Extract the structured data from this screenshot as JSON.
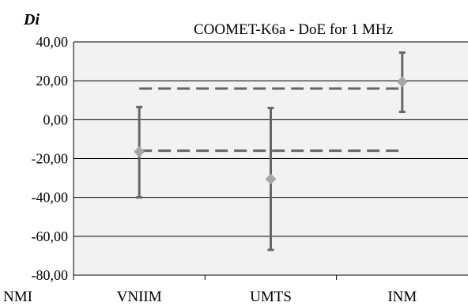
{
  "chart_data": {
    "type": "scatter",
    "title": "COOMET-K6a - DoE for 1 MHz",
    "ylabel": "Di",
    "xlabel": "NMI",
    "categories": [
      "VNIIM",
      "UMTS",
      "INM"
    ],
    "ylim": [
      -80,
      40
    ],
    "ytick_values": [
      40,
      20,
      0,
      -20,
      -40,
      -60,
      -80
    ],
    "ytick_labels": [
      "40,00",
      "20,00",
      "0,00",
      "-20,00",
      "-40,00",
      "-60,00",
      "-80,00"
    ],
    "grid": true,
    "series": [
      {
        "values": [
          -16.5,
          -30.5,
          19.5
        ],
        "upper": [
          6.5,
          6.0,
          34.5
        ],
        "lower": [
          -40.0,
          -67.0,
          4.0
        ]
      }
    ],
    "reference_lines": [
      {
        "y": 16.0,
        "x_from": "VNIIM",
        "x_to": "INM"
      },
      {
        "y": -16.0,
        "x_from": "VNIIM",
        "x_to": "INM"
      }
    ],
    "colors": {
      "plot_bg": "#f2f2f2",
      "marker": "#a6a6a6",
      "errorbar": "#666666",
      "dashed": "#666666",
      "grid": "#000000"
    }
  }
}
